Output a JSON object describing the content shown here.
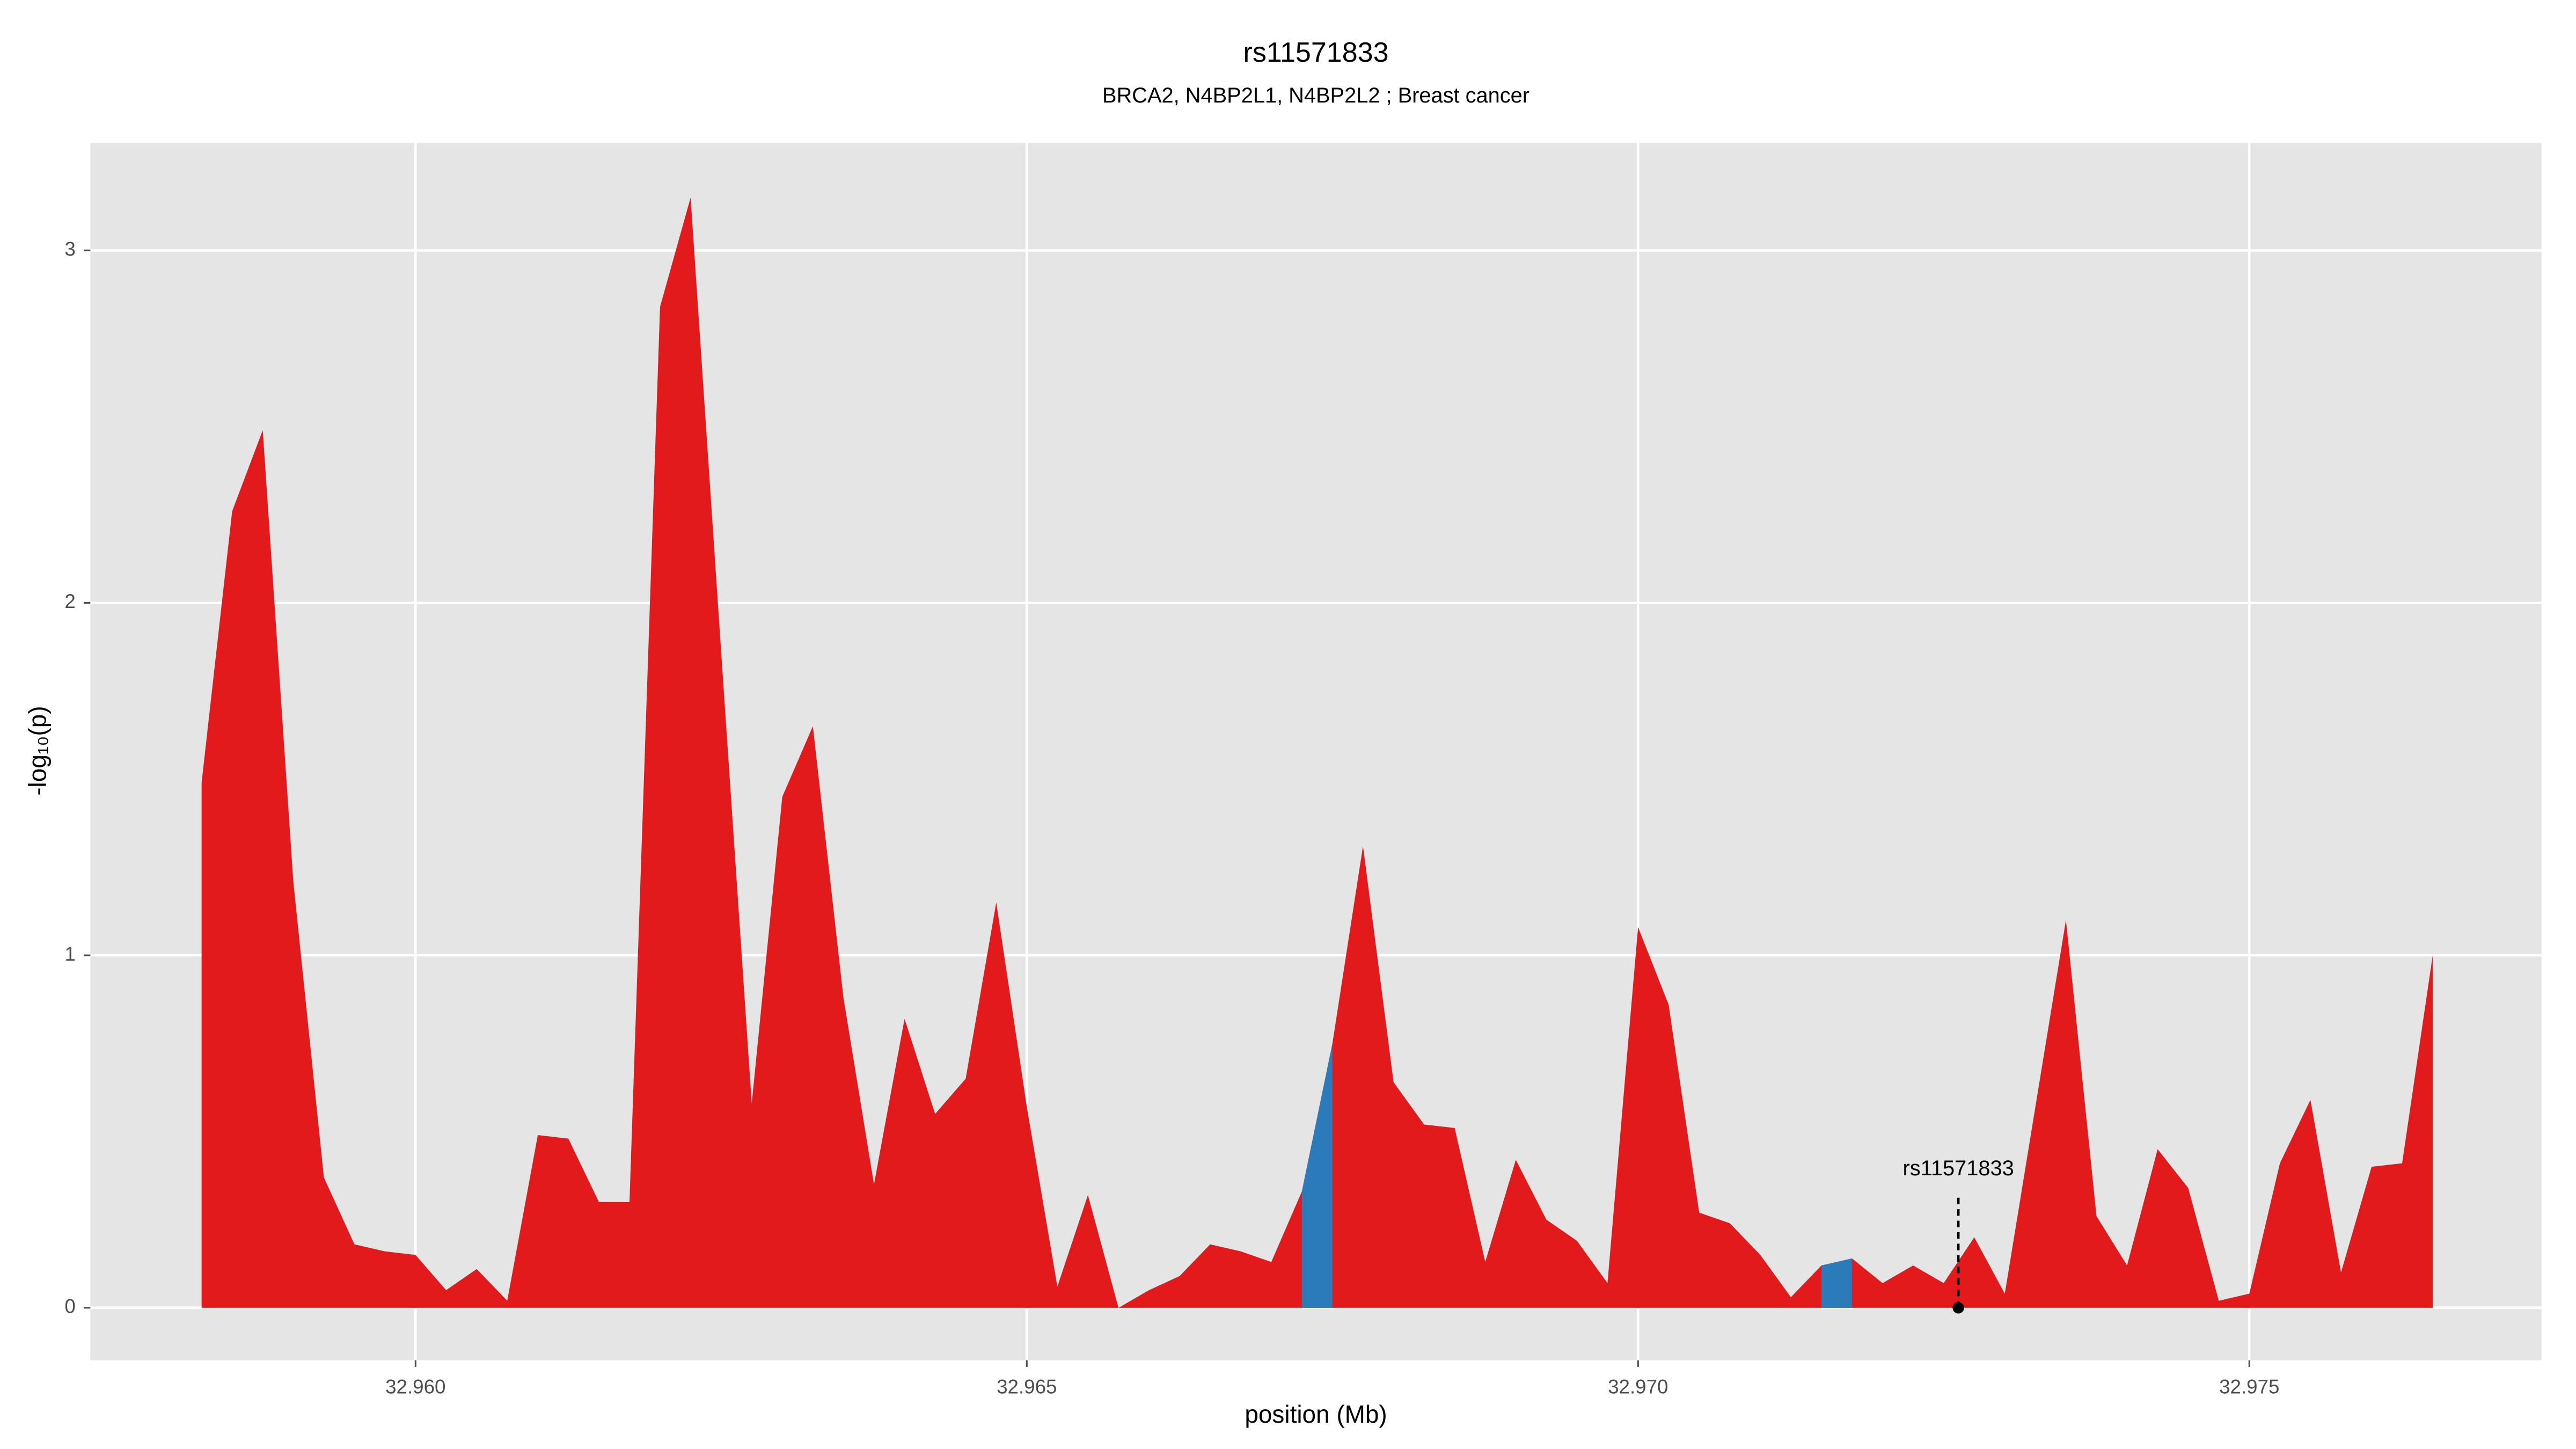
{
  "chart_data": {
    "type": "area",
    "title": "rs11571833",
    "subtitle": "BRCA2, N4BP2L1, N4BP2L2 ; Breast cancer",
    "xlabel": "position (Mb)",
    "ylabel": "-log₁₀(p)",
    "x": [
      32.95825,
      32.9585,
      32.95875,
      32.959,
      32.95925,
      32.9595,
      32.95975,
      32.96,
      32.96025,
      32.9605,
      32.96075,
      32.961,
      32.96125,
      32.9615,
      32.96175,
      32.962,
      32.96225,
      32.9625,
      32.96275,
      32.963,
      32.96325,
      32.9635,
      32.96375,
      32.964,
      32.96425,
      32.9645,
      32.96475,
      32.965,
      32.96525,
      32.9655,
      32.96575,
      32.966,
      32.96625,
      32.9665,
      32.96675,
      32.967,
      32.96725,
      32.9675,
      32.96775,
      32.968,
      32.96825,
      32.9685,
      32.96875,
      32.969,
      32.96925,
      32.9695,
      32.96975,
      32.97,
      32.97025,
      32.9705,
      32.97075,
      32.971,
      32.97125,
      32.9715,
      32.97175,
      32.972,
      32.97225,
      32.9725,
      32.97275,
      32.973,
      32.97325,
      32.9735,
      32.97375,
      32.974,
      32.97425,
      32.9745,
      32.97475,
      32.975,
      32.97525,
      32.9755,
      32.97575,
      32.976,
      32.97625,
      32.9765
    ],
    "series": [
      {
        "color": "#e31a1c",
        "values": [
          1.49,
          2.26,
          2.49,
          1.21,
          0.37,
          0.18,
          0.16,
          0.15,
          0.05,
          0.11,
          0.02,
          0.49,
          0.48,
          0.3,
          0.3,
          2.84,
          3.15,
          1.86,
          0.58,
          1.45,
          1.65,
          0.88,
          0.35,
          0.82,
          0.55,
          0.65,
          1.15,
          0.57,
          0.06,
          0.32,
          0.0,
          0.05,
          0.09,
          0.18,
          0.16,
          0.13,
          0.33,
          0.75,
          1.31,
          0.64,
          0.52,
          0.51,
          0.13,
          0.42,
          0.25,
          0.19,
          0.07,
          1.08,
          0.86,
          0.27,
          0.24,
          0.15,
          0.03,
          0.12,
          0.14,
          0.07,
          0.12,
          0.07,
          0.2,
          0.04,
          0.57,
          1.1,
          0.26,
          0.12,
          0.45,
          0.34,
          0.02,
          0.04,
          0.41,
          0.59,
          0.1,
          0.4,
          0.41,
          1.0
        ]
      },
      {
        "color": "#2b7bba",
        "values": [
          null,
          null,
          null,
          null,
          null,
          null,
          null,
          null,
          null,
          null,
          null,
          null,
          null,
          null,
          null,
          null,
          null,
          null,
          null,
          null,
          null,
          null,
          null,
          null,
          null,
          null,
          null,
          null,
          null,
          null,
          null,
          null,
          null,
          null,
          null,
          null,
          0.33,
          0.75,
          null,
          null,
          null,
          null,
          null,
          null,
          null,
          null,
          null,
          null,
          null,
          null,
          null,
          null,
          null,
          0.12,
          0.14,
          null,
          null,
          null,
          null,
          null,
          null,
          null,
          null,
          null,
          null,
          null,
          null,
          null,
          null,
          null,
          null,
          null,
          null,
          null
        ]
      }
    ],
    "annotation": {
      "text": "rs11571833",
      "x": 32.97262,
      "y": 0
    },
    "xlim": [
      32.95734,
      32.97739
    ],
    "ylim": [
      -0.149,
      3.305
    ],
    "xticks": [
      {
        "value": 32.96,
        "label": "32.960"
      },
      {
        "value": 32.965,
        "label": "32.965"
      },
      {
        "value": 32.97,
        "label": "32.970"
      },
      {
        "value": 32.975,
        "label": "32.975"
      }
    ],
    "yticks": [
      0,
      1,
      2,
      3
    ],
    "grid": true
  }
}
